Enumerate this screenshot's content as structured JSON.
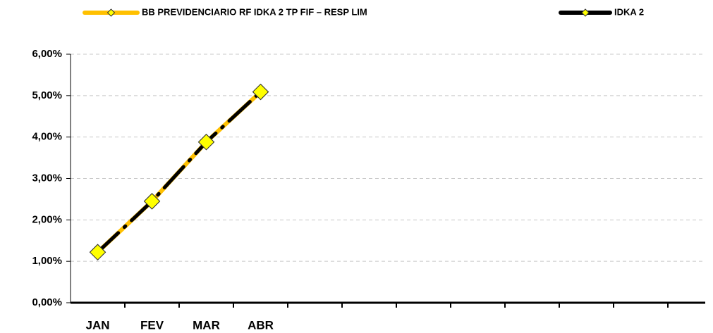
{
  "chart_data": {
    "type": "line",
    "categories": [
      "JAN",
      "FEV",
      "MAR",
      "ABR",
      null,
      null,
      null,
      null,
      null,
      null,
      null,
      null
    ],
    "series": [
      {
        "name": "BB PREVIDENCIARIO RF IDKA 2 TP FIF – RESP LIM",
        "color": "#ffc000",
        "marker_color": "#ffff00",
        "values": [
          1.22,
          2.45,
          3.88,
          5.09,
          null,
          null,
          null,
          null,
          null,
          null,
          null,
          null
        ]
      },
      {
        "name": "IDKA 2",
        "color": "#000000",
        "marker_color": "#ffff00",
        "values": [
          1.22,
          2.45,
          3.88,
          5.09,
          null,
          null,
          null,
          null,
          null,
          null,
          null,
          null
        ]
      }
    ],
    "ylim": [
      0,
      6
    ],
    "yticks": [
      {
        "value": 0,
        "label": "0,00%"
      },
      {
        "value": 1,
        "label": "1,00%"
      },
      {
        "value": 2,
        "label": "2,00%"
      },
      {
        "value": 3,
        "label": "3,00%"
      },
      {
        "value": 4,
        "label": "4,00%"
      },
      {
        "value": 5,
        "label": "5,00%"
      },
      {
        "value": 6,
        "label": "6,00%"
      }
    ],
    "grid": true,
    "legend": "top"
  }
}
